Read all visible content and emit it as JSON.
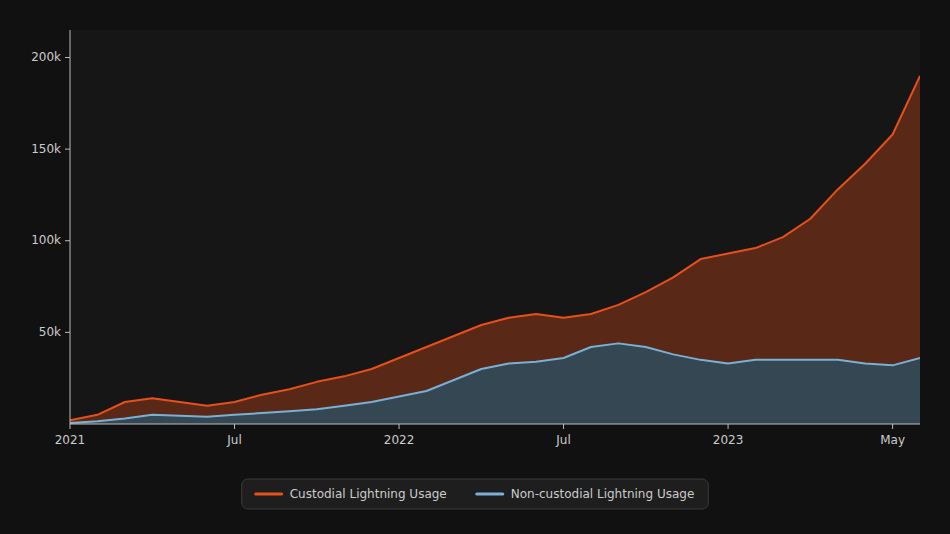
{
  "chart_data": {
    "type": "area",
    "categories": [
      "2021",
      null,
      null,
      null,
      null,
      null,
      "Jul",
      null,
      null,
      null,
      null,
      null,
      "2022",
      null,
      null,
      null,
      null,
      null,
      "Jul",
      null,
      null,
      null,
      null,
      null,
      "2023",
      null,
      null,
      null,
      null,
      null,
      "May",
      null
    ],
    "series": [
      {
        "name": "Custodial Lightning Usage",
        "color": "#e8501a",
        "values": [
          2000,
          5000,
          12000,
          14000,
          12000,
          10000,
          12000,
          16000,
          19000,
          23000,
          26000,
          30000,
          36000,
          42000,
          48000,
          54000,
          58000,
          60000,
          58000,
          60000,
          65000,
          72000,
          80000,
          90000,
          93000,
          96000,
          102000,
          112000,
          128000,
          142000,
          158000,
          190000
        ]
      },
      {
        "name": "Non-custodial Lightning Usage",
        "color": "#7ab0d4",
        "values": [
          500,
          1500,
          3000,
          5000,
          4500,
          4000,
          5000,
          6000,
          7000,
          8000,
          10000,
          12000,
          15000,
          18000,
          24000,
          30000,
          33000,
          34000,
          36000,
          42000,
          44000,
          42000,
          38000,
          35000,
          33000,
          35000,
          35000,
          35000,
          35000,
          33000,
          32000,
          36000
        ]
      }
    ],
    "ylim": [
      0,
      215000
    ],
    "yticks": [
      {
        "value": 50000,
        "label": "50k"
      },
      {
        "value": 100000,
        "label": "100k"
      },
      {
        "value": 150000,
        "label": "150k"
      },
      {
        "value": 200000,
        "label": "200k"
      }
    ],
    "grid": false,
    "legend": "bottom"
  }
}
